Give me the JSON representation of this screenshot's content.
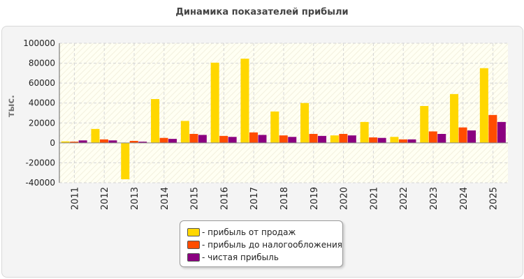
{
  "chart_data": {
    "type": "bar",
    "title": "Динамика показателей прибыли",
    "ylabel": "тыс.",
    "xlabel": "",
    "ylim": [
      -40000,
      100000
    ],
    "yticks": [
      100000,
      80000,
      60000,
      40000,
      20000,
      0,
      -20000,
      -40000
    ],
    "grid": true,
    "legend_position": "bottom-center",
    "categories": [
      "2011",
      "2012",
      "2013",
      "2014",
      "2015",
      "2016",
      "2017",
      "2018",
      "2019",
      "2020",
      "2021",
      "2022",
      "2023",
      "2024",
      "2025"
    ],
    "series": [
      {
        "name": "- прибыль от продаж",
        "color": "#ffd700",
        "values": [
          1500,
          14000,
          -36500,
          44000,
          22000,
          80500,
          84500,
          31500,
          40000,
          7500,
          21000,
          6000,
          37000,
          49000,
          75000
        ]
      },
      {
        "name": "- прибыль до налогообложения",
        "color": "#ff4c00",
        "values": [
          1200,
          3500,
          2000,
          5000,
          9000,
          7000,
          10500,
          7500,
          9000,
          9000,
          5500,
          3500,
          11500,
          15500,
          28000
        ]
      },
      {
        "name": "- чистая прибыль",
        "color": "#8b0080",
        "values": [
          2500,
          2500,
          1200,
          4000,
          8000,
          6000,
          8000,
          6000,
          7000,
          7500,
          5000,
          3500,
          9000,
          12500,
          21000
        ]
      }
    ]
  }
}
